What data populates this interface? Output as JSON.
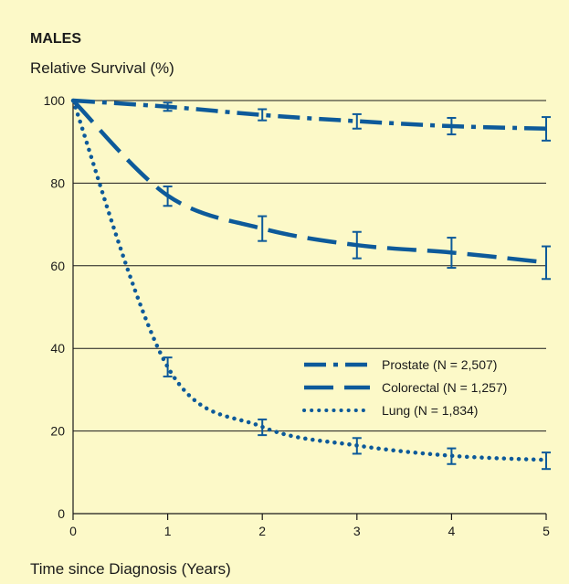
{
  "chart_data": {
    "type": "line",
    "title": "MALES",
    "ylabel": "Relative Survival (%)",
    "xlabel": "Time since Diagnosis (Years)",
    "x": [
      0,
      1,
      2,
      3,
      4,
      5
    ],
    "xlim": [
      0,
      5
    ],
    "ylim": [
      0,
      100
    ],
    "xticks": [
      "0",
      "1",
      "2",
      "3",
      "4",
      "5"
    ],
    "yticks": [
      "0",
      "20",
      "40",
      "60",
      "80",
      "100"
    ],
    "grid": "horizontal",
    "legend_position": "right",
    "colors": {
      "background": "#fcf9c8",
      "line": "#0d5a9a",
      "grid": "#1a1a1a"
    },
    "series": [
      {
        "name": "Prostate (N = 2,507)",
        "style": "dash-dot",
        "values": [
          100,
          98.5,
          96.5,
          95,
          93.8,
          93.2
        ],
        "err_low": [
          null,
          97.5,
          95.2,
          93.2,
          91.8,
          90.3
        ],
        "err_high": [
          null,
          99.5,
          97.9,
          96.7,
          95.8,
          96
        ]
      },
      {
        "name": "Colorectal (N = 1,257)",
        "style": "dashed",
        "values": [
          100,
          77,
          69,
          65,
          63.2,
          60.8
        ],
        "err_low": [
          null,
          74.5,
          66,
          61.8,
          59.5,
          56.8
        ],
        "err_high": [
          null,
          79.2,
          72,
          68.2,
          66.8,
          64.7
        ]
      },
      {
        "name": "Lung (N = 1,834)",
        "style": "dotted",
        "values": [
          100,
          35.5,
          21,
          16.5,
          14,
          13
        ],
        "err_low": [
          null,
          33.2,
          19,
          14.5,
          12,
          10.8
        ],
        "err_high": [
          null,
          37.8,
          22.8,
          18.3,
          15.8,
          14.8
        ]
      }
    ]
  }
}
